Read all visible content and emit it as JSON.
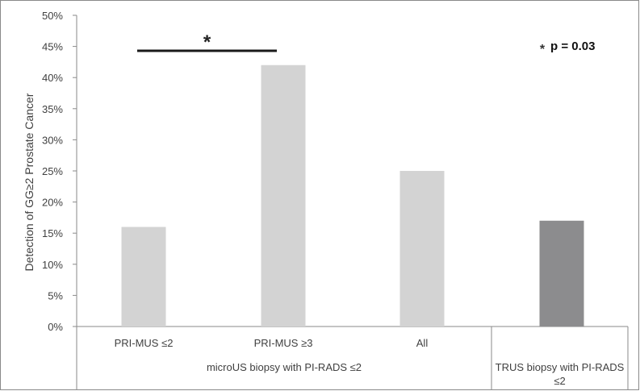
{
  "chart_data": {
    "type": "bar",
    "ylabel": "Detection of  GG≥2 Prostate Cancer",
    "ylim": [
      0,
      50
    ],
    "yticks": [
      "0%",
      "5%",
      "10%",
      "15%",
      "20%",
      "25%",
      "30%",
      "35%",
      "40%",
      "45%",
      "50%"
    ],
    "grid": false,
    "categories": [
      "PRI-MUS ≤2",
      "PRI-MUS ≥3",
      "All",
      ""
    ],
    "values": [
      16,
      42,
      25,
      17
    ],
    "colors": [
      "#d3d3d3",
      "#d3d3d3",
      "#d3d3d3",
      "#8c8c8e"
    ],
    "groups": [
      {
        "label": "microUS biopsy with PI-RADS ≤2",
        "categories": [
          0,
          1,
          2
        ]
      },
      {
        "label_lines": [
          "TRUS biopsy with PI-RADS",
          "≤2"
        ],
        "categories": [
          3
        ]
      }
    ],
    "significance": {
      "between": [
        0,
        1
      ],
      "marker": "*"
    },
    "annotation": {
      "marker": "*",
      "text": "p = 0.03"
    }
  }
}
